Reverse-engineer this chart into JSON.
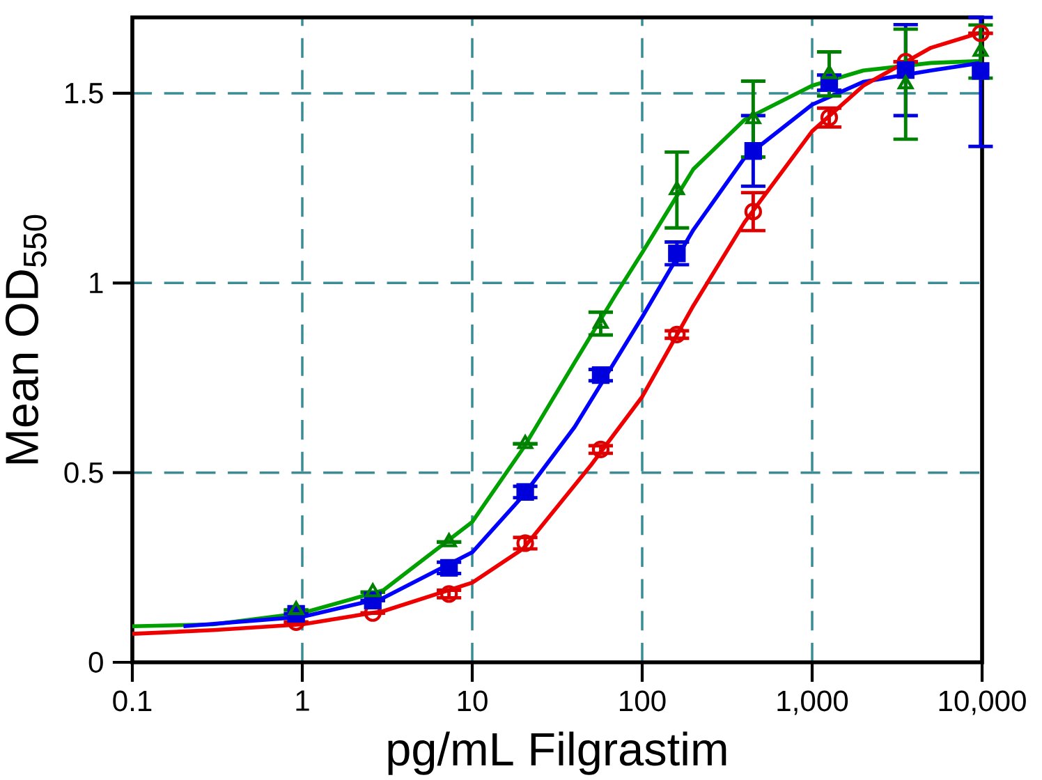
{
  "chart_data": {
    "type": "scatter",
    "xlabel": "pg/mL Filgrastim",
    "ylabel": "Mean OD$_{550}$",
    "log": "x",
    "grid": true,
    "legend": false,
    "xlim": [
      0.1,
      10000
    ],
    "ylim": [
      0,
      1.7
    ],
    "xticks": [
      0.1,
      1,
      10,
      100,
      {
        "value": 1000,
        "label": "1,000"
      },
      {
        "value": 10000,
        "label": "10,000"
      }
    ],
    "yticks": [
      0,
      0.5,
      1,
      1.5
    ],
    "series": [
      {
        "type": "line",
        "marker": "none",
        "color": "#00a000",
        "x": [
          0.1,
          0.3,
          1,
          3,
          10,
          20,
          40,
          70,
          100,
          200,
          400,
          1000,
          2000,
          5000,
          9800
        ],
        "values": [
          0.095,
          0.1,
          0.13,
          0.19,
          0.37,
          0.565,
          0.79,
          0.97,
          1.08,
          1.3,
          1.43,
          1.52,
          1.56,
          1.58,
          1.585
        ]
      },
      {
        "type": "line",
        "marker": "none",
        "color": "#0000ff",
        "x": [
          0.2,
          1,
          3,
          10,
          20,
          40,
          100,
          200,
          400,
          1000,
          2000,
          5000,
          9800
        ],
        "values": [
          0.095,
          0.12,
          0.17,
          0.29,
          0.44,
          0.62,
          0.91,
          1.14,
          1.33,
          1.47,
          1.53,
          1.56,
          1.58
        ]
      },
      {
        "type": "line",
        "marker": "none",
        "color": "#ee0000",
        "x": [
          0.1,
          0.3,
          1,
          3,
          10,
          20,
          50,
          100,
          200,
          400,
          1000,
          2000,
          5000,
          9800
        ],
        "values": [
          0.075,
          0.085,
          0.1,
          0.135,
          0.21,
          0.3,
          0.52,
          0.7,
          0.94,
          1.16,
          1.4,
          1.52,
          1.62,
          1.66
        ]
      },
      {
        "marker": "circle",
        "color": "#dd0000",
        "x": [
          0.92,
          2.6,
          7.3,
          20.5,
          57,
          160,
          450,
          1260,
          3550,
          9800
        ],
        "values": [
          0.106,
          0.13,
          0.18,
          0.314,
          0.561,
          0.864,
          1.188,
          1.436,
          1.583,
          1.658
        ],
        "errors": [
          null,
          null,
          0.01,
          0.015,
          0.01,
          0.01,
          0.05,
          0.025,
          null,
          null
        ]
      },
      {
        "marker": "square",
        "color": "#0000dd",
        "x": [
          0.92,
          2.6,
          7.3,
          20.5,
          57,
          160,
          450,
          1260,
          3550,
          9800
        ],
        "values": [
          0.128,
          0.163,
          0.249,
          0.449,
          0.757,
          1.078,
          1.348,
          1.528,
          1.561,
          1.559
        ],
        "errors": [
          null,
          null,
          0.015,
          0.015,
          0.015,
          0.03,
          0.093,
          0.02,
          0.12,
          [
            1.36,
            1.7
          ]
        ]
      },
      {
        "marker": "triangle",
        "color": "#008000",
        "x": [
          0.92,
          2.6,
          7.3,
          20.5,
          57,
          160,
          450,
          1260,
          3550,
          9800
        ],
        "values": [
          0.138,
          0.185,
          0.317,
          0.576,
          0.893,
          1.245,
          1.432,
          1.551,
          1.524,
          1.61
        ],
        "errors": [
          null,
          null,
          null,
          null,
          0.03,
          0.1,
          0.1,
          0.058,
          0.145,
          0.07
        ]
      }
    ]
  }
}
